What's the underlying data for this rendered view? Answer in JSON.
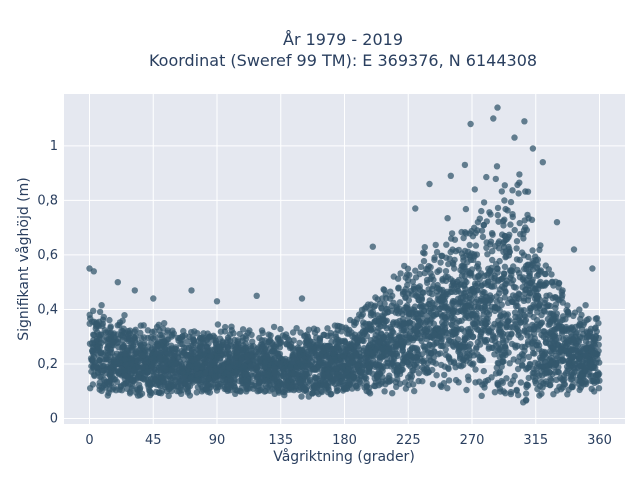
{
  "chart_data": {
    "type": "scatter",
    "title_lines": [
      "År 1979 - 2019",
      "Koordinat (Sweref 99 TM): E 369376, N 6144308"
    ],
    "xlabel": "Vågriktning (grader)",
    "ylabel": "Signifikant våghöjd (m)",
    "xlim": [
      -18,
      378
    ],
    "ylim": [
      -0.02,
      1.19
    ],
    "xticks": [
      0,
      45,
      90,
      135,
      180,
      225,
      270,
      315,
      360
    ],
    "xtick_labels": [
      "0",
      "45",
      "90",
      "135",
      "180",
      "225",
      "270",
      "315",
      "360"
    ],
    "yticks": [
      0,
      0.2,
      0.4,
      0.6,
      0.8,
      1
    ],
    "ytick_labels": [
      "0",
      "0,2",
      "0,4",
      "0,6",
      "0,8",
      "1"
    ],
    "grid": true,
    "colors": {
      "marker": "#34586e",
      "plot_bg": "#e5e8f0",
      "grid": "#ffffff",
      "text": "#2a3f5f"
    },
    "envelope": {
      "direction": [
        0,
        5,
        15,
        30,
        45,
        60,
        90,
        120,
        150,
        170,
        180,
        190,
        200,
        210,
        225,
        240,
        255,
        270,
        280,
        290,
        295,
        300,
        305,
        310,
        315,
        320,
        330,
        340,
        350,
        360
      ],
      "lower": [
        0.09,
        0.08,
        0.08,
        0.08,
        0.08,
        0.08,
        0.09,
        0.09,
        0.08,
        0.08,
        0.08,
        0.09,
        0.09,
        0.09,
        0.1,
        0.1,
        0.1,
        0.09,
        0.06,
        0.05,
        0.04,
        0.04,
        0.04,
        0.05,
        0.06,
        0.07,
        0.08,
        0.08,
        0.09,
        0.1
      ],
      "upper": [
        0.4,
        0.45,
        0.4,
        0.38,
        0.36,
        0.35,
        0.35,
        0.34,
        0.34,
        0.36,
        0.38,
        0.42,
        0.46,
        0.52,
        0.6,
        0.68,
        0.76,
        0.84,
        0.9,
        0.95,
        0.97,
        0.97,
        0.93,
        0.87,
        0.8,
        0.68,
        0.56,
        0.46,
        0.42,
        0.42
      ]
    },
    "outliers": [
      {
        "x": 0,
        "y": 0.55
      },
      {
        "x": 3,
        "y": 0.54
      },
      {
        "x": 20,
        "y": 0.5
      },
      {
        "x": 32,
        "y": 0.47
      },
      {
        "x": 45,
        "y": 0.44
      },
      {
        "x": 72,
        "y": 0.47
      },
      {
        "x": 90,
        "y": 0.43
      },
      {
        "x": 118,
        "y": 0.45
      },
      {
        "x": 150,
        "y": 0.44
      },
      {
        "x": 200,
        "y": 0.63
      },
      {
        "x": 230,
        "y": 0.77
      },
      {
        "x": 240,
        "y": 0.86
      },
      {
        "x": 255,
        "y": 0.89
      },
      {
        "x": 265,
        "y": 0.93
      },
      {
        "x": 269,
        "y": 1.08
      },
      {
        "x": 285,
        "y": 1.1
      },
      {
        "x": 288,
        "y": 1.14
      },
      {
        "x": 300,
        "y": 1.03
      },
      {
        "x": 307,
        "y": 1.09
      },
      {
        "x": 313,
        "y": 0.99
      },
      {
        "x": 320,
        "y": 0.94
      },
      {
        "x": 330,
        "y": 0.72
      },
      {
        "x": 342,
        "y": 0.62
      },
      {
        "x": 355,
        "y": 0.55
      }
    ]
  }
}
